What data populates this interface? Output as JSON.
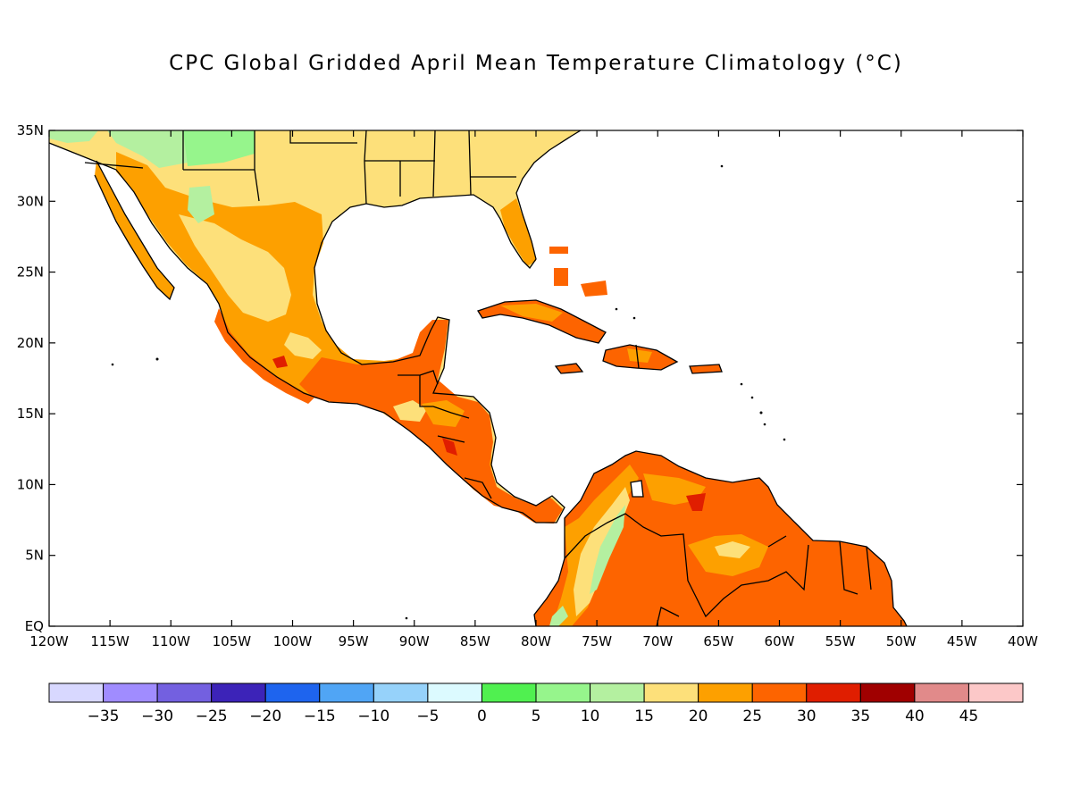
{
  "title": "CPC Global Gridded April Mean Temperature Climatology (°C)",
  "map": {
    "lon_range": [
      -120,
      -40
    ],
    "lat_range": [
      0,
      35
    ],
    "lon_ticks": [
      "120W",
      "115W",
      "110W",
      "105W",
      "100W",
      "95W",
      "90W",
      "85W",
      "80W",
      "75W",
      "70W",
      "65W",
      "60W",
      "55W",
      "50W",
      "45W",
      "40W"
    ],
    "lat_ticks": [
      "EQ",
      "5N",
      "10N",
      "15N",
      "20N",
      "25N",
      "30N",
      "35N"
    ],
    "colors": {
      "c10_15": "#b4f0a0",
      "c15_20": "#fde07a",
      "c20_25": "#fda000",
      "c25_30": "#fd6400",
      "c30_35": "#e01e00",
      "coast": "#000000"
    }
  },
  "colorbar": {
    "colors": [
      "#d8d8ff",
      "#a08cff",
      "#7360e0",
      "#3c23b8",
      "#1e64ee",
      "#50a5f5",
      "#96d2fa",
      "#dcfaff",
      "#50f050",
      "#96f58c",
      "#b4f0a0",
      "#fde07a",
      "#fda000",
      "#fd6400",
      "#e01e00",
      "#a00000",
      "#e18a8a",
      "#fcc8c8"
    ],
    "labels": [
      "-35",
      "-30",
      "-25",
      "-20",
      "-15",
      "-10",
      "-5",
      "0",
      "5",
      "10",
      "15",
      "20",
      "25",
      "30",
      "35",
      "40",
      "45"
    ]
  }
}
